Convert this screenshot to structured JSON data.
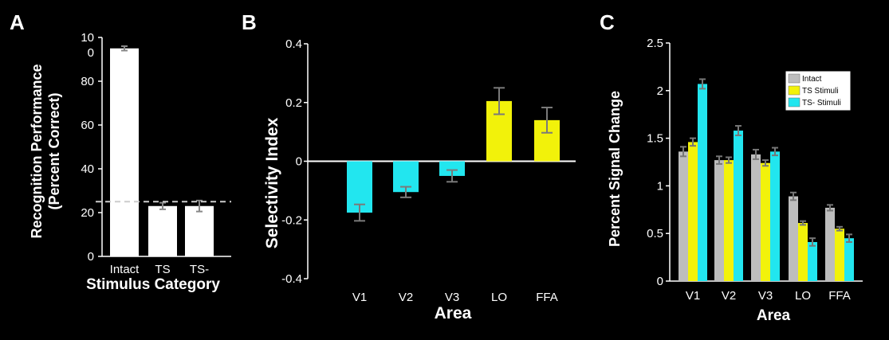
{
  "panels": {
    "A": {
      "letter": "A"
    },
    "B": {
      "letter": "B"
    },
    "C": {
      "letter": "C"
    }
  },
  "chart_data": [
    {
      "type": "bar",
      "panel": "A",
      "categories": [
        "Intact",
        "TS",
        "TS-"
      ],
      "values": [
        95,
        23,
        23
      ],
      "errors": [
        1,
        1.5,
        2.5
      ],
      "colors": [
        "#ffffff",
        "#ffffff",
        "#ffffff"
      ],
      "reference_line": 25,
      "ylim": [
        0,
        100
      ],
      "yticks": [
        "0",
        "20",
        "40",
        "60",
        "80",
        "10\n0"
      ],
      "ylabel_line1": "Recognition Performance",
      "ylabel_line2": "(Percent Correct)",
      "xlabel": "Stimulus Category"
    },
    {
      "type": "bar",
      "panel": "B",
      "categories": [
        "V1",
        "V2",
        "V3",
        "LO",
        "FFA"
      ],
      "values": [
        -0.175,
        -0.105,
        -0.05,
        0.205,
        0.14
      ],
      "errors": [
        0.028,
        0.018,
        0.02,
        0.045,
        0.043
      ],
      "colors": [
        "#22e6ef",
        "#22e6ef",
        "#22e6ef",
        "#f2f20a",
        "#f2f20a"
      ],
      "ylim": [
        -0.4,
        0.4
      ],
      "yticks": [
        "-0.4",
        "-0.2",
        "0",
        "0.2",
        "0.4"
      ],
      "ylabel": "Selectivity Index",
      "xlabel": "Area"
    },
    {
      "type": "bar",
      "panel": "C",
      "categories": [
        "V1",
        "V2",
        "V3",
        "LO",
        "FFA"
      ],
      "series": [
        {
          "name": "Intact",
          "color": "#bdbdbd",
          "values": [
            1.36,
            1.27,
            1.33,
            0.89,
            0.77
          ],
          "errors": [
            0.05,
            0.04,
            0.05,
            0.04,
            0.03
          ]
        },
        {
          "name": "TS Stimuli",
          "color": "#f2f20a",
          "values": [
            1.46,
            1.27,
            1.24,
            0.61,
            0.55
          ],
          "errors": [
            0.04,
            0.03,
            0.03,
            0.02,
            0.02
          ]
        },
        {
          "name": "TS- Stimuli",
          "color": "#22e6ef",
          "values": [
            2.07,
            1.58,
            1.36,
            0.41,
            0.45
          ],
          "errors": [
            0.05,
            0.05,
            0.04,
            0.04,
            0.04
          ]
        }
      ],
      "ylim": [
        0,
        2.5
      ],
      "yticks": [
        "0",
        "0.5",
        "1",
        "1.5",
        "2",
        "2.5"
      ],
      "ylabel": "Percent Signal Change",
      "xlabel": "Area",
      "legend": "top-right"
    }
  ]
}
